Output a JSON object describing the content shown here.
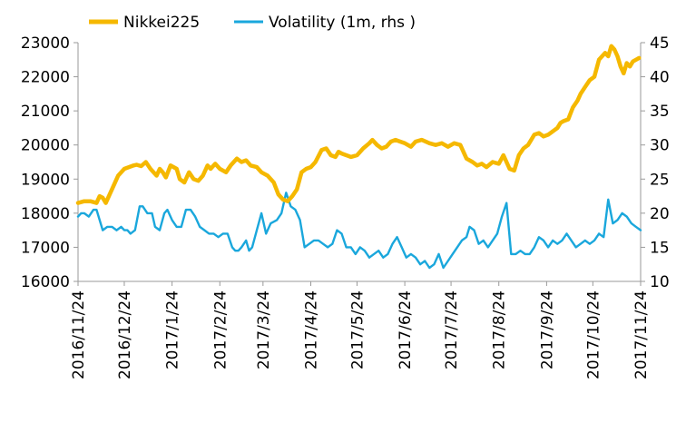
{
  "chart_data": {
    "type": "line",
    "title": "",
    "xlabel": "",
    "ylabel": "",
    "y_axis_left": {
      "min": 16000,
      "max": 23000,
      "ticks": [
        "16000",
        "17000",
        "18000",
        "19000",
        "20000",
        "21000",
        "22000",
        "23000"
      ]
    },
    "y_axis_right": {
      "min": 10,
      "max": 45,
      "ticks": [
        "10",
        "15",
        "20",
        "25",
        "30",
        "35",
        "40",
        "45"
      ]
    },
    "x_axis": {
      "start": "2016-11-24",
      "end": "2017-11-24",
      "tick_labels": [
        "2016/11/24",
        "2016/12/24",
        "2017/1/24",
        "2017/2/24",
        "2017/3/24",
        "2017/4/24",
        "2017/5/24",
        "2017/6/24",
        "2017/7/24",
        "2017/8/24",
        "2017/9/24",
        "2017/10/24",
        "2017/11/24"
      ],
      "tick_dates": [
        "2016-11-24",
        "2016-12-24",
        "2017-01-24",
        "2017-02-24",
        "2017-03-24",
        "2017-04-24",
        "2017-05-24",
        "2017-06-24",
        "2017-07-24",
        "2017-08-24",
        "2017-09-24",
        "2017-10-24",
        "2017-11-24"
      ]
    },
    "legend": {
      "placement": "top-left"
    },
    "series": [
      {
        "name": "Nikkei225",
        "axis": "left",
        "color": "#F5B800",
        "x": [
          "2016-11-24",
          "2016-11-28",
          "2016-12-02",
          "2016-12-06",
          "2016-12-08",
          "2016-12-10",
          "2016-12-12",
          "2016-12-16",
          "2016-12-20",
          "2016-12-24",
          "2016-12-30",
          "2017-01-01",
          "2017-01-04",
          "2017-01-07",
          "2017-01-10",
          "2017-01-12",
          "2017-01-14",
          "2017-01-16",
          "2017-01-18",
          "2017-01-20",
          "2017-01-23",
          "2017-01-25",
          "2017-01-27",
          "2017-01-29",
          "2017-02-01",
          "2017-02-04",
          "2017-02-07",
          "2017-02-10",
          "2017-02-13",
          "2017-02-16",
          "2017-02-18",
          "2017-02-21",
          "2017-02-24",
          "2017-02-28",
          "2017-03-03",
          "2017-03-07",
          "2017-03-10",
          "2017-03-13",
          "2017-03-16",
          "2017-03-20",
          "2017-03-23",
          "2017-03-27",
          "2017-03-31",
          "2017-04-03",
          "2017-04-06",
          "2017-04-09",
          "2017-04-12",
          "2017-04-15",
          "2017-04-18",
          "2017-04-21",
          "2017-04-24",
          "2017-04-27",
          "2017-05-01",
          "2017-05-04",
          "2017-05-07",
          "2017-05-10",
          "2017-05-12",
          "2017-05-14",
          "2017-05-17",
          "2017-05-20",
          "2017-05-24",
          "2017-05-28",
          "2017-06-01",
          "2017-06-03",
          "2017-06-06",
          "2017-06-09",
          "2017-06-12",
          "2017-06-15",
          "2017-06-18",
          "2017-06-21",
          "2017-06-24",
          "2017-06-28",
          "2017-07-01",
          "2017-07-05",
          "2017-07-10",
          "2017-07-14",
          "2017-07-18",
          "2017-07-22",
          "2017-07-26",
          "2017-07-30",
          "2017-08-03",
          "2017-08-07",
          "2017-08-10",
          "2017-08-13",
          "2017-08-16",
          "2017-08-20",
          "2017-08-24",
          "2017-08-27",
          "2017-08-31",
          "2017-09-03",
          "2017-09-06",
          "2017-09-09",
          "2017-09-12",
          "2017-09-14",
          "2017-09-16",
          "2017-09-19",
          "2017-09-22",
          "2017-09-25",
          "2017-09-28",
          "2017-10-01",
          "2017-10-03",
          "2017-10-05",
          "2017-10-08",
          "2017-10-11",
          "2017-10-14",
          "2017-10-16",
          "2017-10-19",
          "2017-10-22",
          "2017-10-25",
          "2017-10-28",
          "2017-11-01",
          "2017-11-03",
          "2017-11-05",
          "2017-11-07",
          "2017-11-09",
          "2017-11-11",
          "2017-11-13",
          "2017-11-15",
          "2017-11-17",
          "2017-11-19",
          "2017-11-21",
          "2017-11-23"
        ],
        "values": [
          18300,
          18350,
          18350,
          18300,
          18500,
          18450,
          18300,
          18700,
          19100,
          19300,
          19400,
          19420,
          19380,
          19500,
          19300,
          19200,
          19100,
          19300,
          19200,
          19050,
          19400,
          19350,
          19300,
          19000,
          18900,
          19200,
          19000,
          18950,
          19100,
          19400,
          19300,
          19450,
          19300,
          19200,
          19400,
          19600,
          19500,
          19550,
          19400,
          19350,
          19200,
          19100,
          18900,
          18550,
          18400,
          18350,
          18500,
          18700,
          19200,
          19300,
          19350,
          19500,
          19850,
          19900,
          19700,
          19650,
          19800,
          19750,
          19700,
          19650,
          19700,
          19900,
          20050,
          20150,
          20000,
          19900,
          19950,
          20100,
          20150,
          20100,
          20050,
          19950,
          20100,
          20150,
          20050,
          20000,
          20050,
          19950,
          20050,
          20000,
          19600,
          19500,
          19400,
          19450,
          19350,
          19500,
          19450,
          19700,
          19300,
          19250,
          19700,
          19900,
          20000,
          20150,
          20300,
          20350,
          20250,
          20300,
          20400,
          20500,
          20650,
          20700,
          20750,
          21100,
          21300,
          21500,
          21700,
          21900,
          22000,
          22500,
          22700,
          22600,
          22900,
          22800,
          22600,
          22300,
          22100,
          22400,
          22300,
          22450,
          22500,
          22550
        ]
      },
      {
        "name": "Volatility (1m, rhs )",
        "axis": "right",
        "color": "#1AA7DC",
        "x": [
          "2016-11-24",
          "2016-11-26",
          "2016-11-28",
          "2016-12-01",
          "2016-12-04",
          "2016-12-06",
          "2016-12-08",
          "2016-12-10",
          "2016-12-13",
          "2016-12-16",
          "2016-12-19",
          "2016-12-22",
          "2016-12-24",
          "2016-12-26",
          "2016-12-28",
          "2016-12-31",
          "2017-01-03",
          "2017-01-05",
          "2017-01-08",
          "2017-01-11",
          "2017-01-13",
          "2017-01-16",
          "2017-01-19",
          "2017-01-21",
          "2017-01-24",
          "2017-01-27",
          "2017-01-30",
          "2017-02-02",
          "2017-02-05",
          "2017-02-08",
          "2017-02-11",
          "2017-02-14",
          "2017-02-17",
          "2017-02-20",
          "2017-02-23",
          "2017-02-26",
          "2017-03-01",
          "2017-03-04",
          "2017-03-06",
          "2017-03-08",
          "2017-03-10",
          "2017-03-13",
          "2017-03-15",
          "2017-03-17",
          "2017-03-20",
          "2017-03-23",
          "2017-03-26",
          "2017-03-29",
          "2017-04-02",
          "2017-04-05",
          "2017-04-08",
          "2017-04-11",
          "2017-04-14",
          "2017-04-17",
          "2017-04-20",
          "2017-04-23",
          "2017-04-26",
          "2017-04-29",
          "2017-05-02",
          "2017-05-05",
          "2017-05-08",
          "2017-05-11",
          "2017-05-14",
          "2017-05-17",
          "2017-05-20",
          "2017-05-23",
          "2017-05-26",
          "2017-05-29",
          "2017-06-01",
          "2017-06-04",
          "2017-06-07",
          "2017-06-10",
          "2017-06-13",
          "2017-06-16",
          "2017-06-19",
          "2017-06-22",
          "2017-06-25",
          "2017-06-28",
          "2017-07-01",
          "2017-07-04",
          "2017-07-07",
          "2017-07-10",
          "2017-07-13",
          "2017-07-16",
          "2017-07-19",
          "2017-07-22",
          "2017-07-25",
          "2017-07-28",
          "2017-07-31",
          "2017-08-03",
          "2017-08-05",
          "2017-08-08",
          "2017-08-11",
          "2017-08-14",
          "2017-08-17",
          "2017-08-20",
          "2017-08-23",
          "2017-08-26",
          "2017-08-29",
          "2017-09-01",
          "2017-09-04",
          "2017-09-07",
          "2017-09-10",
          "2017-09-13",
          "2017-09-16",
          "2017-09-19",
          "2017-09-22",
          "2017-09-25",
          "2017-09-28",
          "2017-10-01",
          "2017-10-04",
          "2017-10-07",
          "2017-10-10",
          "2017-10-13",
          "2017-10-16",
          "2017-10-19",
          "2017-10-22",
          "2017-10-25",
          "2017-10-28",
          "2017-10-31",
          "2017-11-03",
          "2017-11-06",
          "2017-11-09",
          "2017-11-12",
          "2017-11-15",
          "2017-11-18",
          "2017-11-21",
          "2017-11-24"
        ],
        "values": [
          19.5,
          20.0,
          20.0,
          19.5,
          20.5,
          20.5,
          19.0,
          17.5,
          18.0,
          18.0,
          17.5,
          18.0,
          17.5,
          17.5,
          17.0,
          17.5,
          21.0,
          21.0,
          20.0,
          20.0,
          18.0,
          17.5,
          20.0,
          20.5,
          19.0,
          18.0,
          18.0,
          20.5,
          20.5,
          19.5,
          18.0,
          17.5,
          17.0,
          17.0,
          16.5,
          17.0,
          17.0,
          15.0,
          14.5,
          14.5,
          15.0,
          16.0,
          14.5,
          15.0,
          17.5,
          20.0,
          17.0,
          18.5,
          19.0,
          20.0,
          23.0,
          21.0,
          20.5,
          19.0,
          15.0,
          15.5,
          16.0,
          16.0,
          15.5,
          15.0,
          15.5,
          17.5,
          17.0,
          15.0,
          15.0,
          14.0,
          15.0,
          14.5,
          13.5,
          14.0,
          14.5,
          13.5,
          14.0,
          15.5,
          16.5,
          15.0,
          13.5,
          14.0,
          13.5,
          12.5,
          13.0,
          12.0,
          12.5,
          14.0,
          12.0,
          13.0,
          14.0,
          15.0,
          16.0,
          16.5,
          18.0,
          17.5,
          15.5,
          16.0,
          15.0,
          16.0,
          17.0,
          19.5,
          21.5,
          14.0,
          14.0,
          14.5,
          14.0,
          14.0,
          15.0,
          16.5,
          16.0,
          15.0,
          16.0,
          15.5,
          16.0,
          17.0,
          16.0,
          15.0,
          15.5,
          16.0,
          15.5,
          16.0,
          17.0,
          16.5,
          22.0,
          18.5,
          19.0,
          20.0,
          19.5,
          18.5,
          18.0,
          17.5
        ]
      }
    ]
  },
  "legend_labels": {
    "series_0": "Nikkei225",
    "series_1": "Volatility (1m, rhs )"
  }
}
